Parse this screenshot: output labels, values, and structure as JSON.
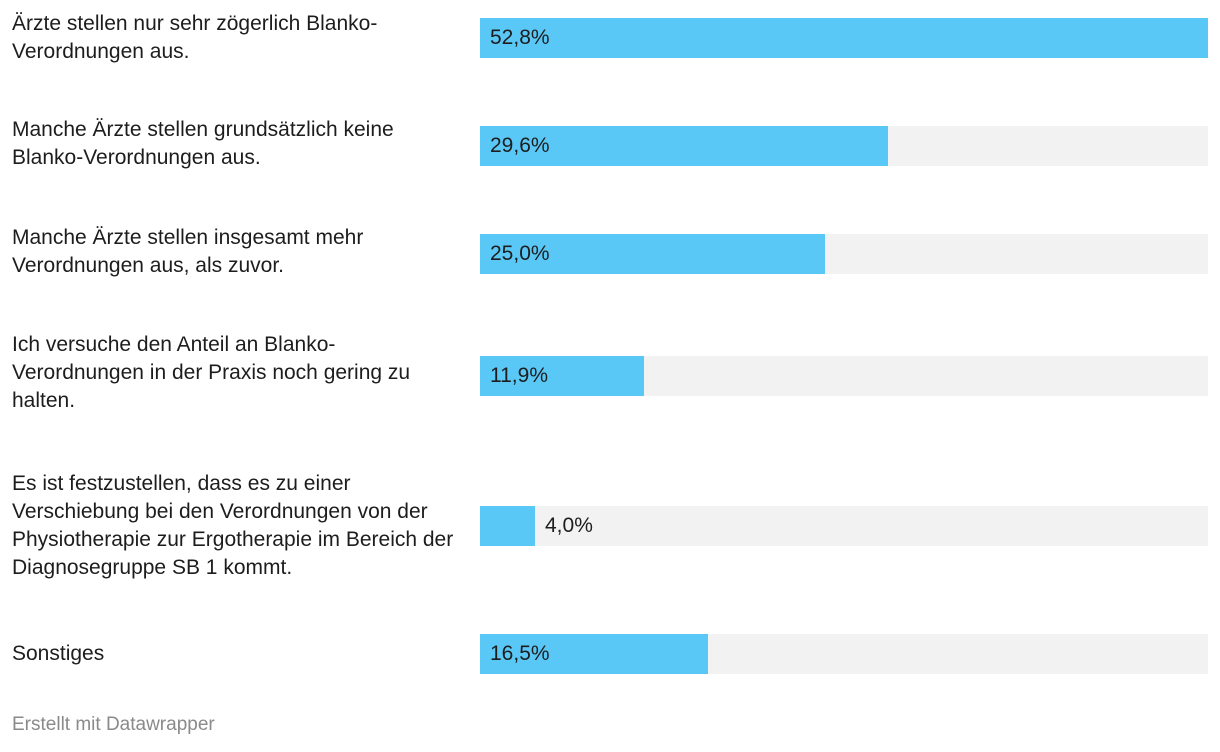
{
  "chart_data": {
    "type": "bar",
    "orientation": "horizontal",
    "categories": [
      "Ärzte stellen nur sehr zögerlich Blanko-Verordnungen aus.",
      "Manche Ärzte stellen grundsätzlich keine Blanko-Verordnungen aus.",
      "Manche Ärzte stellen insgesamt mehr Verordnungen aus, als zuvor.",
      "Ich versuche den Anteil an Blanko-Verordnungen in der Praxis noch gering zu halten.",
      "Es ist festzustellen, dass es zu einer Verschiebung bei den Verordnungen von der Physiotherapie zur Ergotherapie im Bereich der Diagnosegruppe SB 1 kommt.",
      "Sonstiges"
    ],
    "values": [
      52.8,
      29.6,
      25.0,
      11.9,
      4.0,
      16.5
    ],
    "value_labels": [
      "52,8%",
      "29,6%",
      "25,0%",
      "11,9%",
      "4,0%",
      "16,5%"
    ],
    "xlim": [
      0,
      52.8
    ],
    "grid": false,
    "bar_color": "#5ac8f7",
    "track_color": "#f2f2f2"
  },
  "footer": {
    "credit": "Erstellt mit Datawrapper"
  }
}
